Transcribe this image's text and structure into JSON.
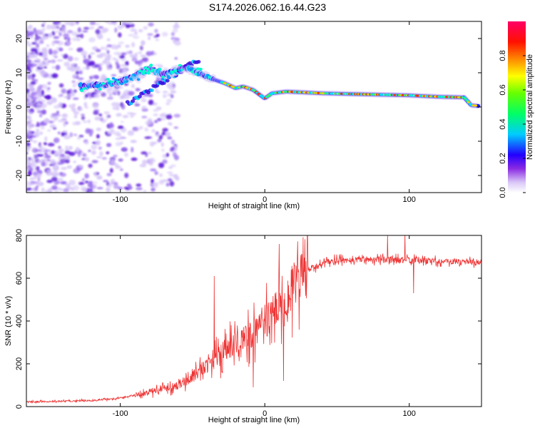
{
  "title": "S174.2026.062.16.44.G23",
  "chart_data": [
    {
      "type": "heatmap",
      "name": "spectrogram",
      "xlabel": "Height of straight line (km)",
      "ylabel": "Frequency (Hz)",
      "xlim": [
        -165,
        150
      ],
      "ylim": [
        -25,
        25
      ],
      "xticks": [
        -100,
        0,
        100
      ],
      "yticks": [
        -20,
        -10,
        0,
        10,
        20
      ],
      "colorbar": {
        "label": "Normalized spectral amplitude",
        "range": [
          0.0,
          1.0
        ],
        "ticks": [
          0.0,
          0.2,
          0.4,
          0.6,
          0.8
        ]
      },
      "ridge_trace_hz": [
        {
          "x": -128,
          "y": 6.0
        },
        {
          "x": -110,
          "y": 6.5
        },
        {
          "x": -95,
          "y": 8.0
        },
        {
          "x": -80,
          "y": 11.0
        },
        {
          "x": -70,
          "y": 9.5
        },
        {
          "x": -55,
          "y": 11.5
        },
        {
          "x": -40,
          "y": 9.0
        },
        {
          "x": -35,
          "y": 8.0
        },
        {
          "x": -28,
          "y": 7.0
        },
        {
          "x": -20,
          "y": 5.5
        },
        {
          "x": -15,
          "y": 6.0
        },
        {
          "x": -8,
          "y": 5.0
        },
        {
          "x": 0,
          "y": 2.5
        },
        {
          "x": 5,
          "y": 4.0
        },
        {
          "x": 15,
          "y": 4.5
        },
        {
          "x": 40,
          "y": 4.0
        },
        {
          "x": 60,
          "y": 3.8
        },
        {
          "x": 80,
          "y": 3.6
        },
        {
          "x": 100,
          "y": 3.4
        },
        {
          "x": 120,
          "y": 3.0
        },
        {
          "x": 138,
          "y": 2.8
        },
        {
          "x": 143,
          "y": 0.5
        },
        {
          "x": 148,
          "y": 0.3
        }
      ]
    },
    {
      "type": "line",
      "name": "snr",
      "xlabel": "Height of straight line (km)",
      "ylabel": "SNR (10 * v/v)",
      "xlim": [
        -165,
        150
      ],
      "ylim": [
        0,
        800
      ],
      "xticks": [
        -100,
        0,
        100
      ],
      "yticks": [
        0,
        200,
        400,
        600,
        800
      ],
      "color": "#ee3333",
      "series_envelope": [
        {
          "x": -165,
          "y": 22
        },
        {
          "x": -140,
          "y": 25
        },
        {
          "x": -120,
          "y": 28
        },
        {
          "x": -100,
          "y": 40
        },
        {
          "x": -85,
          "y": 60
        },
        {
          "x": -70,
          "y": 85
        },
        {
          "x": -60,
          "y": 100
        },
        {
          "x": -50,
          "y": 140
        },
        {
          "x": -40,
          "y": 200
        },
        {
          "x": -30,
          "y": 240
        },
        {
          "x": -20,
          "y": 300
        },
        {
          "x": -10,
          "y": 330
        },
        {
          "x": 0,
          "y": 400
        },
        {
          "x": 10,
          "y": 470
        },
        {
          "x": 20,
          "y": 560
        },
        {
          "x": 30,
          "y": 640
        },
        {
          "x": 45,
          "y": 680
        },
        {
          "x": 70,
          "y": 690
        },
        {
          "x": 100,
          "y": 685
        },
        {
          "x": 120,
          "y": 680
        },
        {
          "x": 150,
          "y": 675
        }
      ],
      "spikes": [
        {
          "x": -35,
          "y": 610
        },
        {
          "x": 10,
          "y": 760
        },
        {
          "x": 13,
          "y": 120
        },
        {
          "x": -8,
          "y": 90
        },
        {
          "x": 85,
          "y": 800
        },
        {
          "x": 97,
          "y": 810
        },
        {
          "x": 103,
          "y": 530
        }
      ]
    }
  ]
}
